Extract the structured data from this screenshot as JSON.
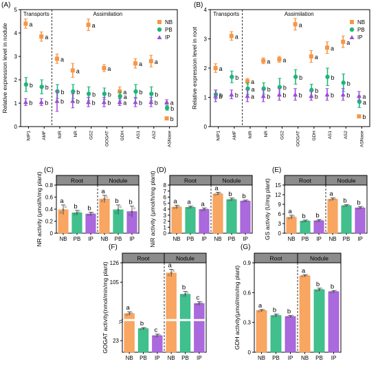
{
  "figure": {
    "colors": {
      "NB": "#f79646",
      "PB": "#1fb57a",
      "IP": "#9b4fd6"
    }
  },
  "chart_data": [
    {
      "id": "A",
      "panel_label": "(A)",
      "type": "scatter",
      "ylabel": "Relative expression level in nodule",
      "ylim": [
        0,
        5
      ],
      "yticks": [
        0,
        1,
        2,
        3,
        4,
        5
      ],
      "section_labels": [
        "Transports",
        "Assimilation"
      ],
      "divider_after_index": 1,
      "categories": [
        "NIP1",
        "AMF",
        "NIR",
        "NR",
        "GS2",
        "GOGAT",
        "GDH",
        "AS1",
        "AS2",
        "ASNase"
      ],
      "legend_position": "top-right",
      "series": [
        {
          "name": "NB",
          "color": "#f79646",
          "values": [
            4.4,
            3.85,
            2.9,
            2.4,
            4.35,
            2.5,
            1.5,
            2.7,
            2.8,
            0.35
          ],
          "errors": [
            0.2,
            0.2,
            0.2,
            0.3,
            0.25,
            0.15,
            0.2,
            0.2,
            0.25,
            0.05
          ],
          "letters": [
            "a",
            "a",
            "a",
            "a",
            "a",
            "a",
            "a",
            "a",
            "a",
            "b"
          ]
        },
        {
          "name": "PB",
          "color": "#1fb57a",
          "values": [
            1.8,
            1.7,
            1.5,
            1.5,
            1.4,
            1.4,
            1.3,
            1.5,
            1.4,
            0.8
          ],
          "errors": [
            0.3,
            0.3,
            0.3,
            0.3,
            0.3,
            0.25,
            0.2,
            0.3,
            0.3,
            0.1
          ],
          "letters": [
            "b",
            "b",
            "b",
            "b",
            "b",
            "b",
            "a",
            "b",
            "b",
            "b"
          ]
        },
        {
          "name": "IP",
          "color": "#9b4fd6",
          "values": [
            1.05,
            1.05,
            1.1,
            1.1,
            1.05,
            1.05,
            1.05,
            1.05,
            1.05,
            1.05
          ],
          "errors": [
            0.15,
            0.15,
            0.45,
            0.3,
            0.2,
            0.2,
            0.15,
            0.2,
            0.2,
            0.1
          ],
          "letters": [
            "b",
            "b",
            "b",
            "b",
            "b",
            "b",
            "a",
            "b",
            "b",
            "a"
          ]
        }
      ]
    },
    {
      "id": "B",
      "panel_label": "(B)",
      "type": "scatter",
      "ylabel": "Relative expression level in root",
      "ylim": [
        0,
        4
      ],
      "yticks": [
        0,
        1,
        2,
        3,
        4
      ],
      "section_labels": [
        "Transports",
        "Assimilation"
      ],
      "divider_after_index": 1,
      "categories": [
        "NIP1",
        "AMF",
        "NIR",
        "NR",
        "GS2",
        "GOGAT",
        "GDH",
        "AS1",
        "AS2",
        "ASNase"
      ],
      "legend_position": "top-right",
      "series": [
        {
          "name": "NB",
          "color": "#f79646",
          "values": [
            2.0,
            3.1,
            1.55,
            2.25,
            2.3,
            3.5,
            2.4,
            2.7,
            2.9,
            0.35
          ],
          "errors": [
            0.15,
            0.15,
            0.1,
            0.1,
            0.1,
            0.2,
            0.2,
            0.2,
            0.2,
            0.05
          ],
          "letters": [
            "a",
            "a",
            "a",
            "a",
            "a",
            "a",
            "a",
            "a",
            "a",
            "b"
          ]
        },
        {
          "name": "PB",
          "color": "#1fb57a",
          "values": [
            1.1,
            1.7,
            1.3,
            1.3,
            1.35,
            1.7,
            1.25,
            1.7,
            1.5,
            0.85
          ],
          "errors": [
            0.15,
            0.2,
            0.2,
            0.2,
            0.3,
            0.25,
            0.2,
            0.3,
            0.3,
            0.2
          ],
          "letters": [
            "b",
            "b",
            "a",
            "b",
            "b",
            "b",
            "b",
            "b",
            "b",
            "a"
          ]
        },
        {
          "name": "IP",
          "color": "#9b4fd6",
          "values": [
            1.05,
            1.1,
            1.05,
            1.05,
            1.1,
            1.1,
            1.05,
            1.1,
            1.1,
            1.05
          ],
          "errors": [
            0.2,
            0.15,
            0.2,
            0.2,
            0.2,
            0.2,
            0.15,
            0.2,
            0.2,
            0.15
          ],
          "letters": [
            "b",
            "b",
            "a",
            "b",
            "b",
            "b",
            "b",
            "b",
            "b",
            "a"
          ]
        }
      ]
    },
    {
      "id": "C",
      "panel_label": "(C)",
      "type": "bar",
      "ylabel": "NR activity (μmol/h/mg plant)",
      "ylim": [
        0,
        0.8
      ],
      "yticks": [
        0.0,
        0.2,
        0.4,
        0.6,
        0.8
      ],
      "groups": [
        "Root",
        "Nodule"
      ],
      "categories": [
        "NB",
        "PB",
        "IP",
        "NB",
        "PB",
        "IP"
      ],
      "values": [
        0.39,
        0.34,
        0.32,
        0.57,
        0.39,
        0.36
      ],
      "errors": [
        0.08,
        0.04,
        0.03,
        0.06,
        0.08,
        0.09
      ],
      "letters": [
        "a",
        "b",
        "b",
        "a",
        "b",
        "b"
      ]
    },
    {
      "id": "D",
      "panel_label": "(D)",
      "type": "bar",
      "ylabel": "NiR activity (μmol/h/mg plant)",
      "ylim": [
        0,
        8
      ],
      "yticks": [
        0,
        1,
        2,
        3,
        4,
        5,
        6,
        7,
        8
      ],
      "groups": [
        "Root",
        "Nodule"
      ],
      "categories": [
        "NB",
        "PB",
        "IP",
        "NB",
        "PB",
        "IP"
      ],
      "values": [
        4.35,
        4.3,
        3.95,
        6.55,
        5.6,
        5.35
      ],
      "errors": [
        0.3,
        0.2,
        0.25,
        0.25,
        0.25,
        0.15
      ],
      "letters": [
        "a",
        "a",
        "a",
        "a",
        "b",
        "b"
      ]
    },
    {
      "id": "E",
      "panel_label": "(E)",
      "type": "bar",
      "ylabel": "GS activity (U/mg plant)",
      "ylim": [
        0,
        15
      ],
      "yticks": [
        0,
        3,
        6,
        9,
        12,
        15
      ],
      "groups": [
        "Root",
        "Nodule"
      ],
      "categories": [
        "NB",
        "PB",
        "IP",
        "NB",
        "PB",
        "IP"
      ],
      "values": [
        5.0,
        3.8,
        3.9,
        10.6,
        8.6,
        7.9
      ],
      "errors": [
        0.6,
        0.3,
        0.35,
        0.4,
        0.3,
        0.4
      ],
      "letters": [
        "a",
        "b",
        "b",
        "a",
        "b",
        "b"
      ]
    },
    {
      "id": "F",
      "panel_label": "(F)",
      "type": "bar",
      "ylabel": "GOGAT activity(nmol/min/mg plant)",
      "ylim": [
        0,
        126
      ],
      "yticks": [
        23,
        105,
        126
      ],
      "axis_break": true,
      "groups": [
        "Root",
        "Nodule"
      ],
      "categories": [
        "NB",
        "PB",
        "IP",
        "NB",
        "PB",
        "IP"
      ],
      "values": [
        71,
        47,
        33,
        115,
        92,
        82
      ],
      "errors": [
        2,
        2,
        3,
        4,
        3,
        2
      ],
      "letters": [
        "a",
        "b",
        "c",
        "a",
        "b",
        "c"
      ]
    },
    {
      "id": "G",
      "panel_label": "(G)",
      "type": "bar",
      "ylabel": "GDH activity(μmol/min/mg plant)",
      "ylim": [
        0,
        0.9
      ],
      "yticks": [
        0.0,
        0.3,
        0.6,
        0.9
      ],
      "groups": [
        "Root",
        "Nodule"
      ],
      "categories": [
        "NB",
        "PB",
        "IP",
        "NB",
        "PB",
        "IP"
      ],
      "values": [
        0.42,
        0.37,
        0.36,
        0.77,
        0.63,
        0.61
      ],
      "errors": [
        0.01,
        0.015,
        0.01,
        0.01,
        0.015,
        0.01
      ],
      "letters": [
        "a",
        "b",
        "b",
        "a",
        "b",
        "b"
      ]
    }
  ]
}
